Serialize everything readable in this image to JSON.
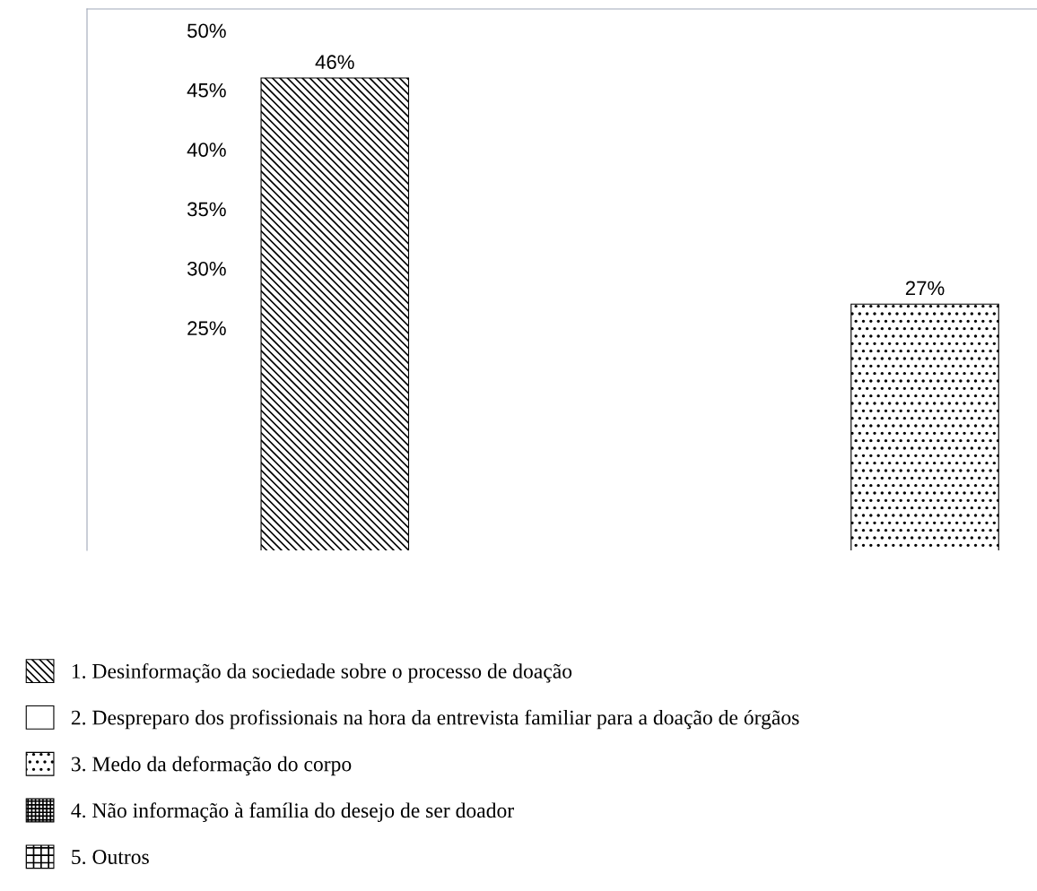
{
  "chart_data": {
    "type": "bar",
    "categories": [
      null,
      null,
      null
    ],
    "series": [
      {
        "name": "1. Desinformação da sociedade sobre o processo de doação",
        "color": "#000000",
        "values": [
          46,
          null,
          null
        ],
        "value_labels": [
          "46%",
          null,
          null
        ]
      },
      {
        "name": "2. Despreparo dos profissionais na hora da entrevista familiar para a doação de órgãos",
        "color": "#000000",
        "values": [
          null,
          null,
          null
        ]
      },
      {
        "name": "3. Medo da deformação do corpo",
        "color": "#000000",
        "values": [
          null,
          null,
          27
        ],
        "value_labels": [
          null,
          null,
          "27%"
        ]
      },
      {
        "name": "4. Não informação à família do desejo de ser doador",
        "color": "#000000",
        "values": [
          null,
          null,
          null
        ]
      },
      {
        "name": "5. Outros",
        "color": "#000000",
        "values": [
          null,
          null,
          null
        ]
      }
    ],
    "ylim": [
      6.3,
      51.8
    ],
    "yticks": [
      {
        "value": 25,
        "label": "25%"
      },
      {
        "value": 30,
        "label": "30%"
      },
      {
        "value": 35,
        "label": "35%"
      },
      {
        "value": 40,
        "label": "40%"
      },
      {
        "value": 45,
        "label": "45%"
      },
      {
        "value": 50,
        "label": "50%"
      }
    ],
    "grid": false,
    "legend": "bottom"
  }
}
